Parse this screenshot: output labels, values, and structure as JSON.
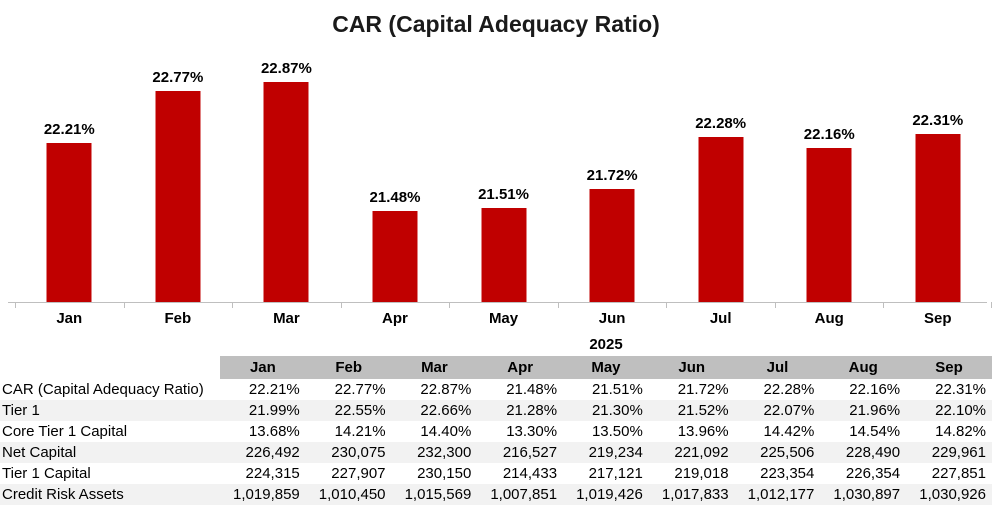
{
  "chart_data": {
    "type": "bar",
    "title": "CAR (Capital Adequacy Ratio)",
    "categories": [
      "Jan",
      "Feb",
      "Mar",
      "Apr",
      "May",
      "Jun",
      "Jul",
      "Aug",
      "Sep"
    ],
    "values": [
      22.21,
      22.77,
      22.87,
      21.48,
      21.51,
      21.72,
      22.28,
      22.16,
      22.31
    ],
    "data_labels": [
      "22.21%",
      "22.77%",
      "22.87%",
      "21.48%",
      "21.51%",
      "21.72%",
      "22.28%",
      "22.16%",
      "22.31%"
    ],
    "xlabel": "",
    "ylabel": "",
    "ylim": [
      20.5,
      23.15
    ],
    "grid": false,
    "legend": "none",
    "bar_color": "#C00000",
    "axis_color": "#BFBFBF"
  },
  "table": {
    "year_label": "2025",
    "columns": [
      "Jan",
      "Feb",
      "Mar",
      "Apr",
      "May",
      "Jun",
      "Jul",
      "Aug",
      "Sep"
    ],
    "rows": [
      {
        "label": "CAR (Capital Adequacy Ratio)",
        "values": [
          "22.21%",
          "22.77%",
          "22.87%",
          "21.48%",
          "21.51%",
          "21.72%",
          "22.28%",
          "22.16%",
          "22.31%"
        ]
      },
      {
        "label": "Tier 1",
        "values": [
          "21.99%",
          "22.55%",
          "22.66%",
          "21.28%",
          "21.30%",
          "21.52%",
          "22.07%",
          "21.96%",
          "22.10%"
        ]
      },
      {
        "label": "Core Tier 1 Capital",
        "values": [
          "13.68%",
          "14.21%",
          "14.40%",
          "13.30%",
          "13.50%",
          "13.96%",
          "14.42%",
          "14.54%",
          "14.82%"
        ]
      },
      {
        "label": "Net Capital",
        "values": [
          "226,492",
          "230,075",
          "232,300",
          "216,527",
          "219,234",
          "221,092",
          "225,506",
          "228,490",
          "229,961"
        ]
      },
      {
        "label": "Tier 1 Capital",
        "values": [
          "224,315",
          "227,907",
          "230,150",
          "214,433",
          "217,121",
          "219,018",
          "223,354",
          "226,354",
          "227,851"
        ]
      },
      {
        "label": "Credit Risk Assets",
        "values": [
          "1,019,859",
          "1,010,450",
          "1,015,569",
          "1,007,851",
          "1,019,426",
          "1,017,833",
          "1,012,177",
          "1,030,897",
          "1,030,926"
        ]
      }
    ],
    "header_bg": "#BFBFBF",
    "stripe_bg": "#F2F2F2"
  }
}
